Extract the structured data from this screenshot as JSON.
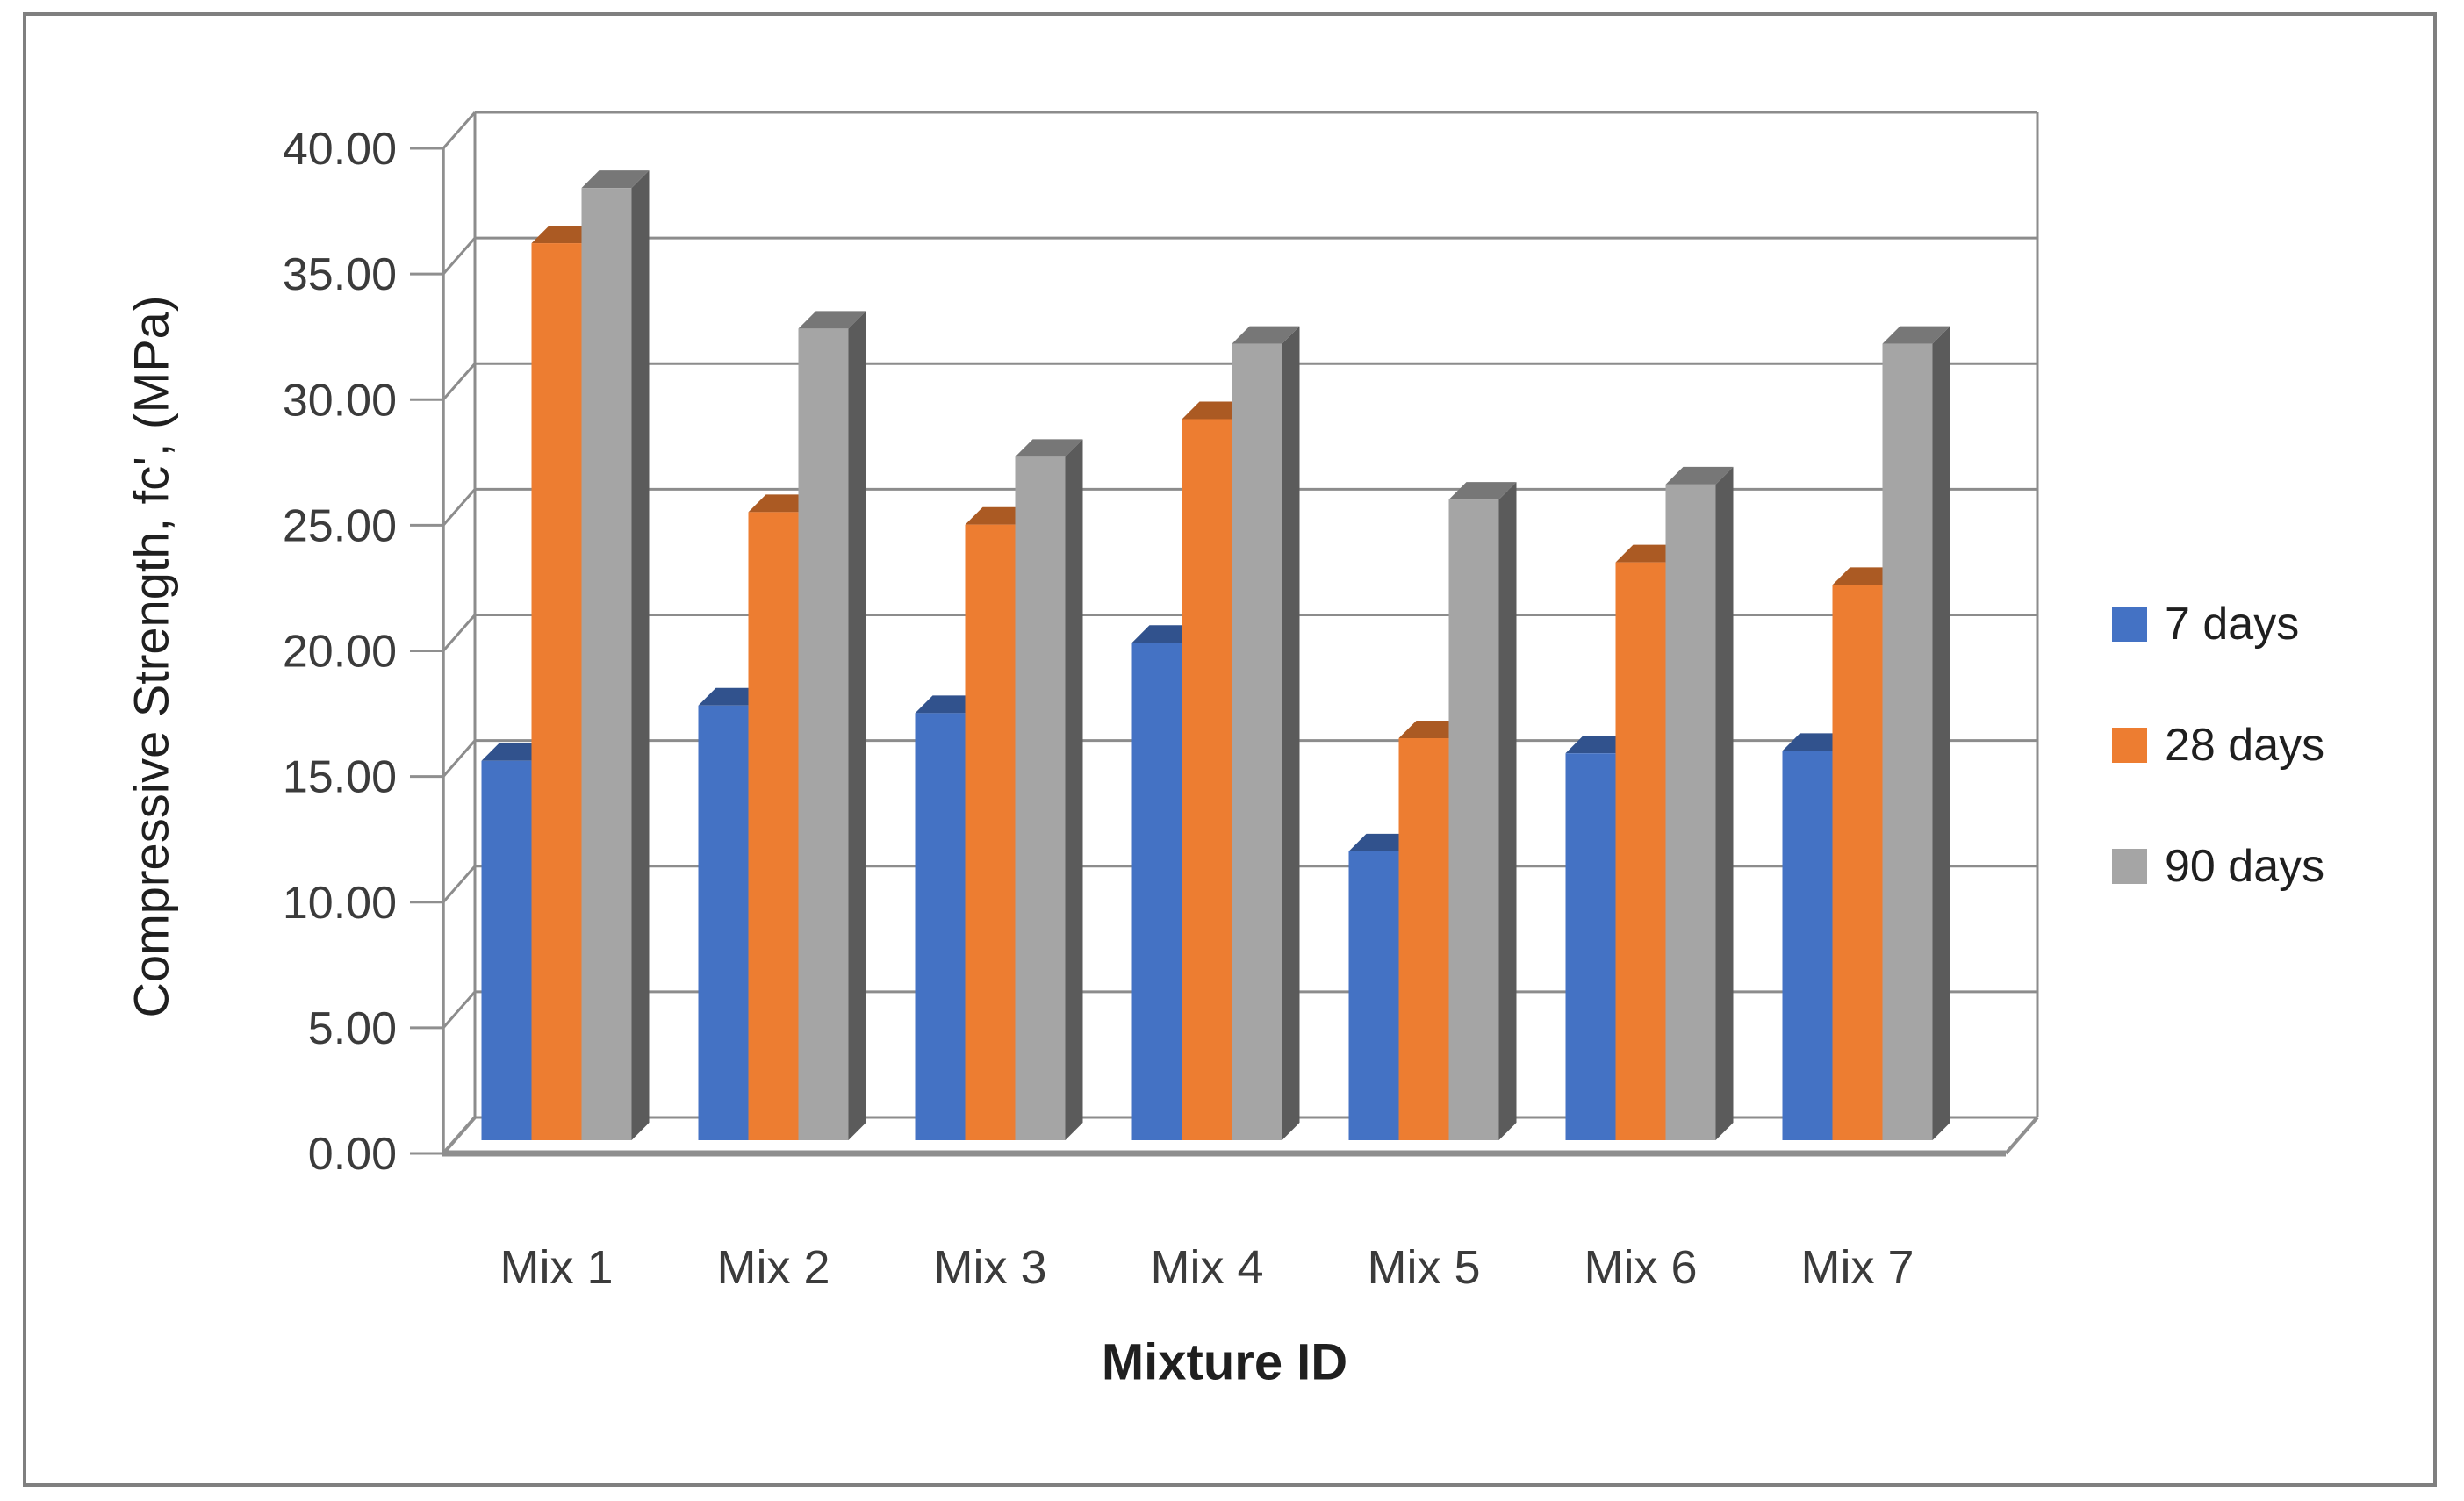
{
  "chart_data": {
    "type": "bar",
    "variant": "3d_clustered_column",
    "title": "",
    "xlabel": "Mixture ID",
    "ylabel": "Compressive Strength, fc', (MPa)",
    "categories": [
      "Mix 1",
      "Mix 2",
      "Mix 3",
      "Mix 4",
      "Mix 5",
      "Mix 6",
      "Mix 7"
    ],
    "series": [
      {
        "name": "7 days",
        "color": "#4472C4",
        "values": [
          15.1,
          17.3,
          17.0,
          19.8,
          11.5,
          15.4,
          15.5
        ]
      },
      {
        "name": "28 days",
        "color": "#ED7D31",
        "values": [
          35.7,
          25.0,
          24.5,
          28.7,
          16.0,
          23.0,
          22.1
        ]
      },
      {
        "name": "90 days",
        "color": "#A5A5A5",
        "values": [
          37.9,
          32.3,
          27.2,
          31.7,
          25.5,
          26.1,
          31.7
        ]
      }
    ],
    "y_axis": {
      "min": 0,
      "max": 40,
      "step": 5,
      "tick_labels": [
        "0.00",
        "5.00",
        "10.00",
        "15.00",
        "20.00",
        "25.00",
        "30.00",
        "35.00",
        "40.00"
      ]
    },
    "grid": true,
    "legend_position": "right"
  },
  "style": {
    "grid_color": "#8c8c8c",
    "axis_line_color": "#8f8f8f",
    "axis_text_color": "#3b3b3b",
    "title_text_color": "#1f1f1f",
    "frame_border_color": "#7f7f7f",
    "background": "#ffffff"
  }
}
